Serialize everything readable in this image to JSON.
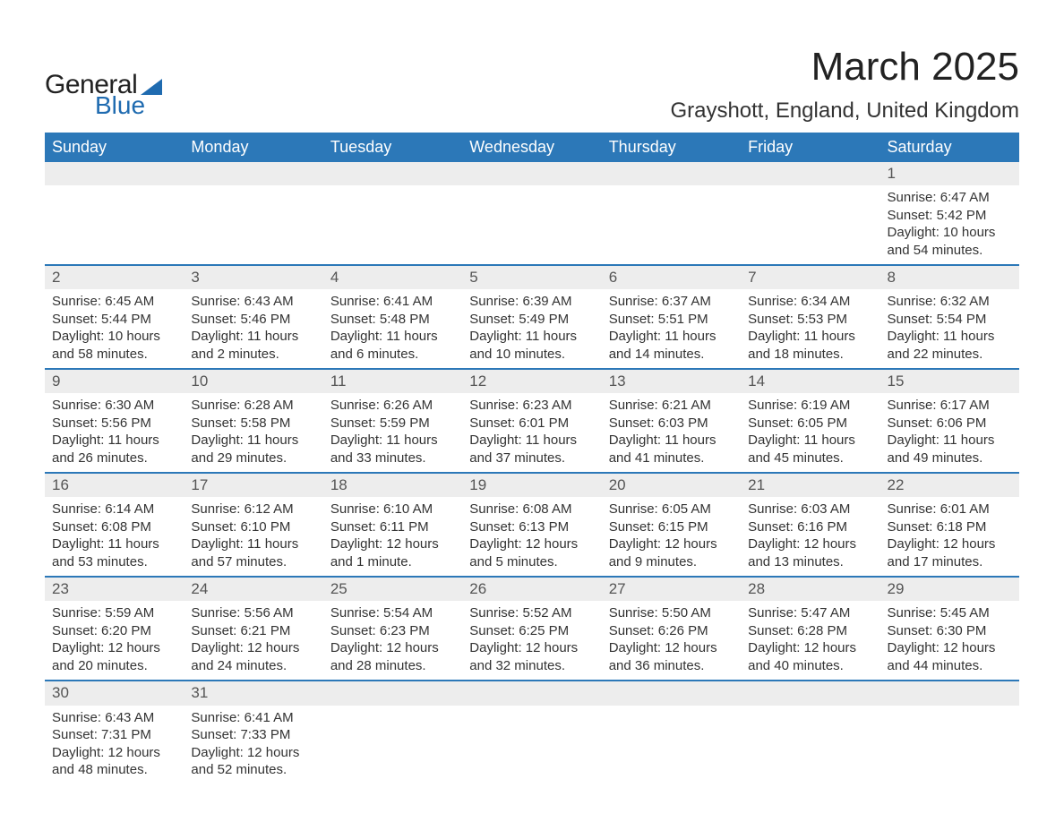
{
  "brand": {
    "word1": "General",
    "word2": "Blue",
    "accent_color": "#1f6bb0"
  },
  "title": "March 2025",
  "location": "Grayshott, England, United Kingdom",
  "colors": {
    "header_bg": "#2c78b8",
    "header_text": "#ffffff",
    "daynum_bg": "#ededed",
    "row_border": "#2c78b8",
    "body_text": "#333333",
    "page_bg": "#ffffff"
  },
  "fonts": {
    "title_size_pt": 33,
    "location_size_pt": 18,
    "header_size_pt": 14,
    "body_size_pt": 11
  },
  "weekdays": [
    "Sunday",
    "Monday",
    "Tuesday",
    "Wednesday",
    "Thursday",
    "Friday",
    "Saturday"
  ],
  "weeks": [
    [
      null,
      null,
      null,
      null,
      null,
      null,
      {
        "d": "1",
        "sr": "Sunrise: 6:47 AM",
        "ss": "Sunset: 5:42 PM",
        "dl1": "Daylight: 10 hours",
        "dl2": "and 54 minutes."
      }
    ],
    [
      {
        "d": "2",
        "sr": "Sunrise: 6:45 AM",
        "ss": "Sunset: 5:44 PM",
        "dl1": "Daylight: 10 hours",
        "dl2": "and 58 minutes."
      },
      {
        "d": "3",
        "sr": "Sunrise: 6:43 AM",
        "ss": "Sunset: 5:46 PM",
        "dl1": "Daylight: 11 hours",
        "dl2": "and 2 minutes."
      },
      {
        "d": "4",
        "sr": "Sunrise: 6:41 AM",
        "ss": "Sunset: 5:48 PM",
        "dl1": "Daylight: 11 hours",
        "dl2": "and 6 minutes."
      },
      {
        "d": "5",
        "sr": "Sunrise: 6:39 AM",
        "ss": "Sunset: 5:49 PM",
        "dl1": "Daylight: 11 hours",
        "dl2": "and 10 minutes."
      },
      {
        "d": "6",
        "sr": "Sunrise: 6:37 AM",
        "ss": "Sunset: 5:51 PM",
        "dl1": "Daylight: 11 hours",
        "dl2": "and 14 minutes."
      },
      {
        "d": "7",
        "sr": "Sunrise: 6:34 AM",
        "ss": "Sunset: 5:53 PM",
        "dl1": "Daylight: 11 hours",
        "dl2": "and 18 minutes."
      },
      {
        "d": "8",
        "sr": "Sunrise: 6:32 AM",
        "ss": "Sunset: 5:54 PM",
        "dl1": "Daylight: 11 hours",
        "dl2": "and 22 minutes."
      }
    ],
    [
      {
        "d": "9",
        "sr": "Sunrise: 6:30 AM",
        "ss": "Sunset: 5:56 PM",
        "dl1": "Daylight: 11 hours",
        "dl2": "and 26 minutes."
      },
      {
        "d": "10",
        "sr": "Sunrise: 6:28 AM",
        "ss": "Sunset: 5:58 PM",
        "dl1": "Daylight: 11 hours",
        "dl2": "and 29 minutes."
      },
      {
        "d": "11",
        "sr": "Sunrise: 6:26 AM",
        "ss": "Sunset: 5:59 PM",
        "dl1": "Daylight: 11 hours",
        "dl2": "and 33 minutes."
      },
      {
        "d": "12",
        "sr": "Sunrise: 6:23 AM",
        "ss": "Sunset: 6:01 PM",
        "dl1": "Daylight: 11 hours",
        "dl2": "and 37 minutes."
      },
      {
        "d": "13",
        "sr": "Sunrise: 6:21 AM",
        "ss": "Sunset: 6:03 PM",
        "dl1": "Daylight: 11 hours",
        "dl2": "and 41 minutes."
      },
      {
        "d": "14",
        "sr": "Sunrise: 6:19 AM",
        "ss": "Sunset: 6:05 PM",
        "dl1": "Daylight: 11 hours",
        "dl2": "and 45 minutes."
      },
      {
        "d": "15",
        "sr": "Sunrise: 6:17 AM",
        "ss": "Sunset: 6:06 PM",
        "dl1": "Daylight: 11 hours",
        "dl2": "and 49 minutes."
      }
    ],
    [
      {
        "d": "16",
        "sr": "Sunrise: 6:14 AM",
        "ss": "Sunset: 6:08 PM",
        "dl1": "Daylight: 11 hours",
        "dl2": "and 53 minutes."
      },
      {
        "d": "17",
        "sr": "Sunrise: 6:12 AM",
        "ss": "Sunset: 6:10 PM",
        "dl1": "Daylight: 11 hours",
        "dl2": "and 57 minutes."
      },
      {
        "d": "18",
        "sr": "Sunrise: 6:10 AM",
        "ss": "Sunset: 6:11 PM",
        "dl1": "Daylight: 12 hours",
        "dl2": "and 1 minute."
      },
      {
        "d": "19",
        "sr": "Sunrise: 6:08 AM",
        "ss": "Sunset: 6:13 PM",
        "dl1": "Daylight: 12 hours",
        "dl2": "and 5 minutes."
      },
      {
        "d": "20",
        "sr": "Sunrise: 6:05 AM",
        "ss": "Sunset: 6:15 PM",
        "dl1": "Daylight: 12 hours",
        "dl2": "and 9 minutes."
      },
      {
        "d": "21",
        "sr": "Sunrise: 6:03 AM",
        "ss": "Sunset: 6:16 PM",
        "dl1": "Daylight: 12 hours",
        "dl2": "and 13 minutes."
      },
      {
        "d": "22",
        "sr": "Sunrise: 6:01 AM",
        "ss": "Sunset: 6:18 PM",
        "dl1": "Daylight: 12 hours",
        "dl2": "and 17 minutes."
      }
    ],
    [
      {
        "d": "23",
        "sr": "Sunrise: 5:59 AM",
        "ss": "Sunset: 6:20 PM",
        "dl1": "Daylight: 12 hours",
        "dl2": "and 20 minutes."
      },
      {
        "d": "24",
        "sr": "Sunrise: 5:56 AM",
        "ss": "Sunset: 6:21 PM",
        "dl1": "Daylight: 12 hours",
        "dl2": "and 24 minutes."
      },
      {
        "d": "25",
        "sr": "Sunrise: 5:54 AM",
        "ss": "Sunset: 6:23 PM",
        "dl1": "Daylight: 12 hours",
        "dl2": "and 28 minutes."
      },
      {
        "d": "26",
        "sr": "Sunrise: 5:52 AM",
        "ss": "Sunset: 6:25 PM",
        "dl1": "Daylight: 12 hours",
        "dl2": "and 32 minutes."
      },
      {
        "d": "27",
        "sr": "Sunrise: 5:50 AM",
        "ss": "Sunset: 6:26 PM",
        "dl1": "Daylight: 12 hours",
        "dl2": "and 36 minutes."
      },
      {
        "d": "28",
        "sr": "Sunrise: 5:47 AM",
        "ss": "Sunset: 6:28 PM",
        "dl1": "Daylight: 12 hours",
        "dl2": "and 40 minutes."
      },
      {
        "d": "29",
        "sr": "Sunrise: 5:45 AM",
        "ss": "Sunset: 6:30 PM",
        "dl1": "Daylight: 12 hours",
        "dl2": "and 44 minutes."
      }
    ],
    [
      {
        "d": "30",
        "sr": "Sunrise: 6:43 AM",
        "ss": "Sunset: 7:31 PM",
        "dl1": "Daylight: 12 hours",
        "dl2": "and 48 minutes."
      },
      {
        "d": "31",
        "sr": "Sunrise: 6:41 AM",
        "ss": "Sunset: 7:33 PM",
        "dl1": "Daylight: 12 hours",
        "dl2": "and 52 minutes."
      },
      null,
      null,
      null,
      null,
      null
    ]
  ]
}
